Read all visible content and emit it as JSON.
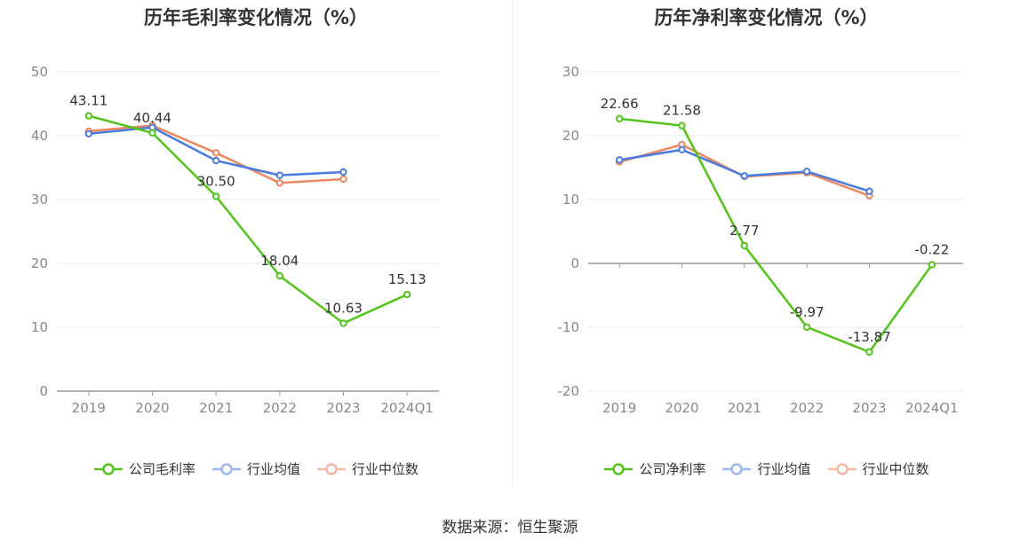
{
  "source_text": "数据来源：恒生聚源",
  "chart_data": [
    {
      "type": "line",
      "title": "历年毛利率变化情况（%）",
      "categories": [
        "2019",
        "2020",
        "2021",
        "2022",
        "2023",
        "2024Q1"
      ],
      "ylim": [
        0,
        50
      ],
      "yticks": [
        0,
        10,
        20,
        30,
        40,
        50
      ],
      "grid": true,
      "legend_position": "bottom",
      "series": [
        {
          "name": "公司毛利率",
          "color": "#52c41a",
          "values": [
            43.11,
            40.44,
            30.5,
            18.04,
            10.63,
            15.13
          ],
          "labels": [
            "43.11",
            "40.44",
            "30.50",
            "18.04",
            "10.63",
            "15.13"
          ]
        },
        {
          "name": "行业均值",
          "color": "#4a7be0",
          "values": [
            40.3,
            41.3,
            36.1,
            33.8,
            34.3,
            null
          ],
          "labels": null
        },
        {
          "name": "行业中位数",
          "color": "#ee8760",
          "values": [
            40.7,
            41.6,
            37.3,
            32.6,
            33.2,
            null
          ],
          "labels": null
        }
      ]
    },
    {
      "type": "line",
      "title": "历年净利率变化情况（%）",
      "categories": [
        "2019",
        "2020",
        "2021",
        "2022",
        "2023",
        "2024Q1"
      ],
      "ylim": [
        -20,
        30
      ],
      "yticks": [
        -20,
        -10,
        0,
        10,
        20,
        30
      ],
      "grid": true,
      "legend_position": "bottom",
      "series": [
        {
          "name": "公司净利率",
          "color": "#52c41a",
          "values": [
            22.66,
            21.58,
            2.77,
            -9.97,
            -13.87,
            -0.22
          ],
          "labels": [
            "22.66",
            "21.58",
            "2.77",
            "-9.97",
            "-13.87",
            "-0.22"
          ]
        },
        {
          "name": "行业均值",
          "color": "#4a7be0",
          "values": [
            16.2,
            17.8,
            13.7,
            14.4,
            11.3,
            null
          ],
          "labels": null
        },
        {
          "name": "行业中位数",
          "color": "#ee8760",
          "values": [
            15.9,
            18.6,
            13.6,
            14.2,
            10.6,
            null
          ],
          "labels": null
        }
      ]
    }
  ]
}
